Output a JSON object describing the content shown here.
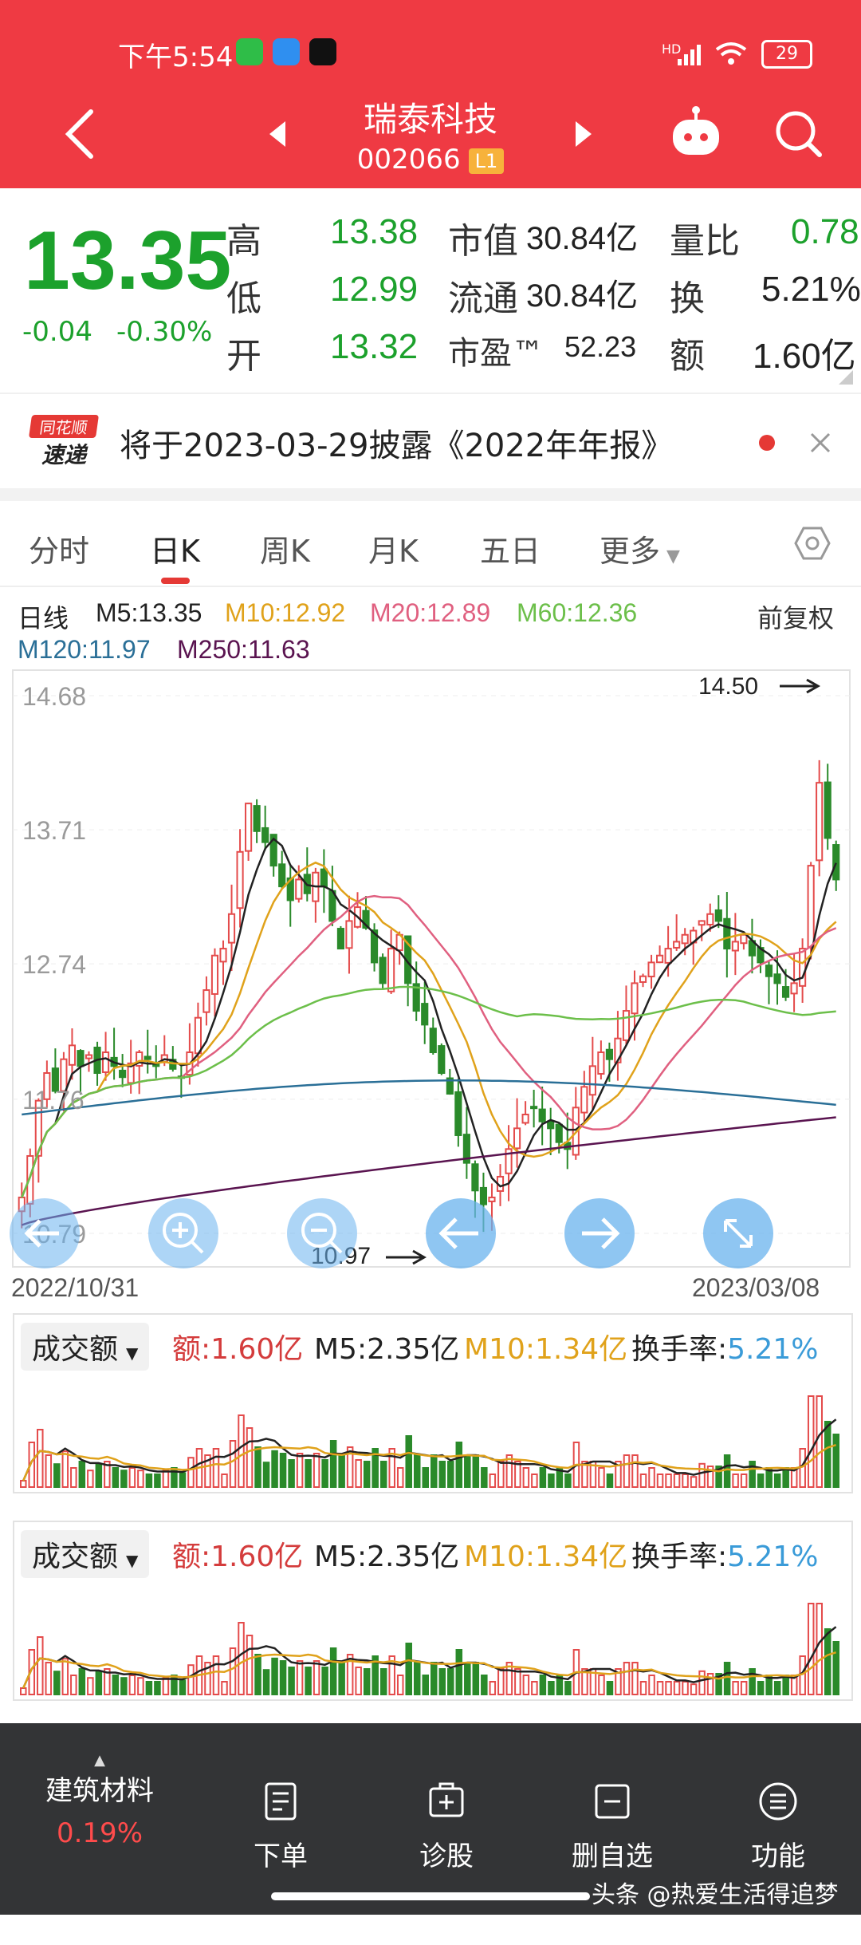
{
  "status_bar": {
    "time": "下午5:54",
    "network": "HD",
    "battery": "29"
  },
  "header": {
    "stock_name": "瑞泰科技",
    "stock_code": "002066",
    "level": "L1"
  },
  "quote": {
    "price": "13.35",
    "change": "-0.04",
    "change_pct": "-0.30%",
    "rows": [
      {
        "l1": "高",
        "v1": "13.38",
        "l2": "市值",
        "v2": "30.84亿",
        "l3": "量比",
        "v3": "0.78"
      },
      {
        "l1": "低",
        "v1": "12.99",
        "l2": "流通",
        "v2": "30.84亿",
        "l3": "换",
        "v3": "5.21%"
      },
      {
        "l1": "开",
        "v1": "13.32",
        "l2": "市盈™",
        "v2": "52.23",
        "l3": "额",
        "v3": "1.60亿"
      }
    ]
  },
  "notice": {
    "logo_top": "同花顺",
    "logo_bottom": "速递",
    "text": "将于2023-03-29披露《2022年年报》"
  },
  "tabs": [
    "分时",
    "日K",
    "周K",
    "月K",
    "五日",
    "更多"
  ],
  "active_tab": 1,
  "ma_legend": {
    "period": "日线",
    "items": [
      {
        "label": "M5:13.35",
        "color": "#222222"
      },
      {
        "label": "M10:12.92",
        "color": "#e0a21b"
      },
      {
        "label": "M20:12.89",
        "color": "#e06080"
      },
      {
        "label": "M60:12.36",
        "color": "#6cbf4a"
      },
      {
        "label": "M120:11.97",
        "color": "#2a6f97"
      },
      {
        "label": "M250:11.63",
        "color": "#5a1450"
      }
    ],
    "adjust": "前复权"
  },
  "kline": {
    "y_ticks": [
      "14.68",
      "13.71",
      "12.74",
      "11.76",
      "10.79"
    ],
    "high_label": "14.50",
    "low_label": "10.97",
    "date_start": "2022/10/31",
    "date_end": "2023/03/08"
  },
  "volume_panel": {
    "selector": "成交额",
    "amount": "额:1.60亿",
    "m5": "M5:2.35亿",
    "m10": "M10:1.34亿",
    "turnover_label": "换手率:",
    "turnover": "5.21%"
  },
  "bottom_bar": {
    "sector_name": "建筑材料",
    "sector_change": "0.19%",
    "items": [
      "下单",
      "诊股",
      "删自选",
      "功能"
    ]
  },
  "watermark": "头条 @热爱生活得追梦人",
  "chart_data": {
    "type": "candlestick",
    "ylim": [
      10.79,
      14.68
    ],
    "closes": [
      11.05,
      11.35,
      11.75,
      11.95,
      11.82,
      12.05,
      12.15,
      12.0,
      12.08,
      11.95,
      12.1,
      12.0,
      11.92,
      12.02,
      12.1,
      12.05,
      12.0,
      12.08,
      11.98,
      11.92,
      12.1,
      12.35,
      12.55,
      12.8,
      12.85,
      13.1,
      13.55,
      13.9,
      13.7,
      13.62,
      13.45,
      13.3,
      13.2,
      13.35,
      13.25,
      13.4,
      13.3,
      13.05,
      12.85,
      13.05,
      13.15,
      13.0,
      12.75,
      12.6,
      12.85,
      12.95,
      12.6,
      12.4,
      12.3,
      12.1,
      11.95,
      11.8,
      11.5,
      11.3,
      11.1,
      11.0,
      11.05,
      11.2,
      11.4,
      11.55,
      11.65,
      11.7,
      11.6,
      11.55,
      11.45,
      11.4,
      11.7,
      11.85,
      12.0,
      12.1,
      12.05,
      12.2,
      12.4,
      12.6,
      12.65,
      12.75,
      12.8,
      12.85,
      12.9,
      12.95,
      12.98,
      13.05,
      13.1,
      13.05,
      12.85,
      12.9,
      12.95,
      12.8,
      12.75,
      12.65,
      12.6,
      12.5,
      12.6,
      12.85,
      13.45,
      14.05,
      13.65,
      13.35
    ]
  }
}
